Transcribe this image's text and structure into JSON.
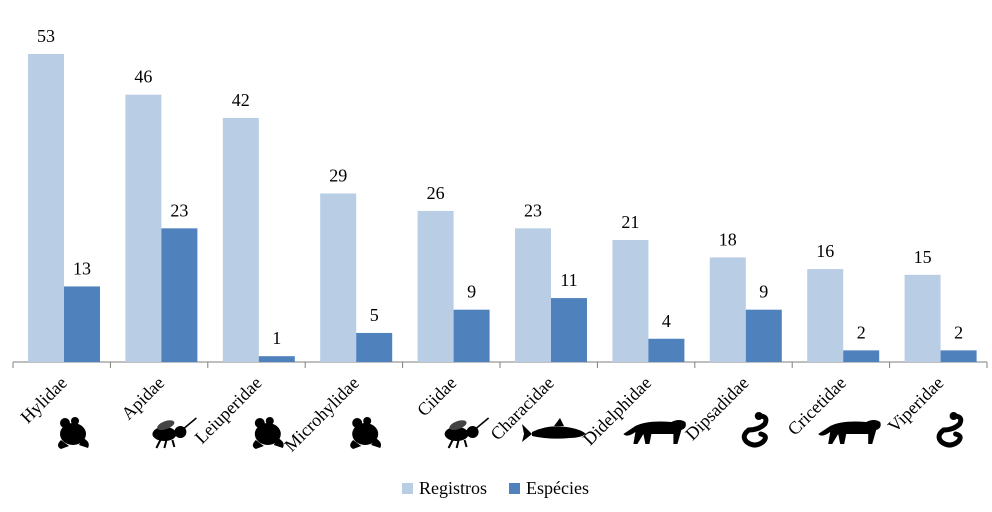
{
  "chart_data": {
    "type": "bar",
    "categories": [
      "Hylidae",
      "Apidae",
      "Leiuperidae",
      "Microhylidae",
      "Ciidae",
      "Characidae",
      "Didelphidae",
      "Dipsadidae",
      "Cricetidae",
      "Viperidae"
    ],
    "series": [
      {
        "name": "Registros",
        "values": [
          53,
          46,
          42,
          29,
          26,
          23,
          21,
          18,
          16,
          15
        ],
        "color": "#b9cde5"
      },
      {
        "name": "Espécies",
        "values": [
          13,
          23,
          1,
          5,
          9,
          11,
          4,
          9,
          2,
          2
        ],
        "color": "#4f81bd"
      }
    ],
    "icons": [
      "frog-icon",
      "bee-icon",
      "frog-icon",
      "frog-icon",
      "bee-icon",
      "fish-icon",
      "jaguar-icon",
      "snake-icon",
      "jaguar-icon",
      "snake-icon"
    ],
    "ylim": [
      0,
      53
    ],
    "grid": false,
    "legend_position": "bottom"
  }
}
